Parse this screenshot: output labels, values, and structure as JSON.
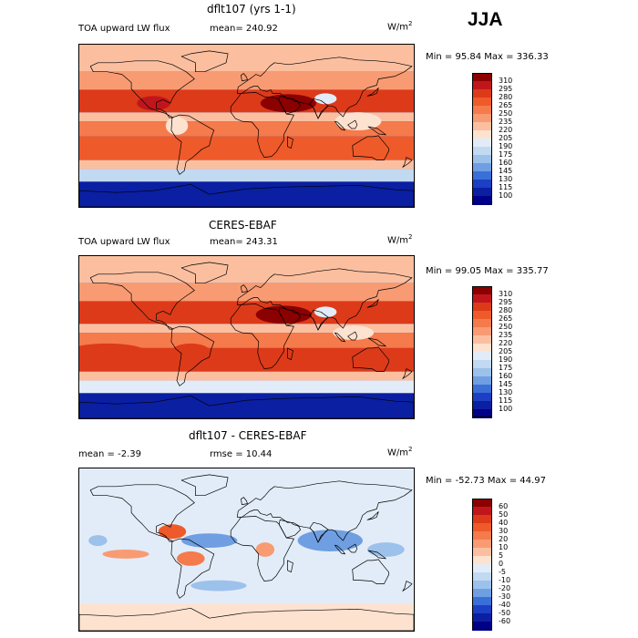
{
  "season": "JJA",
  "panels": [
    {
      "id": "model",
      "title": "dflt107 (yrs 1-1)",
      "left_label": "TOA upward LW flux",
      "center_label": "mean= 240.92",
      "units": "W/m",
      "units_sup": "2",
      "minmax": "Min =  95.84 Max = 336.33",
      "colorbar_labels": [
        "310",
        "295",
        "280",
        "265",
        "250",
        "235",
        "220",
        "205",
        "190",
        "175",
        "160",
        "145",
        "130",
        "115",
        "100"
      ],
      "colorbar_colors": [
        "#8b0000",
        "#c0161b",
        "#dd3a1a",
        "#ef5a2a",
        "#f57a4c",
        "#f89b73",
        "#fbbfa0",
        "#fde2d0",
        "#e2ecf8",
        "#c2d9f2",
        "#9cc1eb",
        "#6f9fe2",
        "#3b6fd8",
        "#1c3fc4",
        "#0b1fa2",
        "#000088"
      ],
      "regions": [
        {
          "kind": "band",
          "lat_range": [
            -90,
            -62
          ],
          "value": 110
        },
        {
          "kind": "band",
          "lat_range": [
            -62,
            -48
          ],
          "value": 185
        },
        {
          "kind": "band",
          "lat_range": [
            -48,
            -38
          ],
          "value": 220
        },
        {
          "kind": "band",
          "lat_range": [
            -38,
            -12
          ],
          "value": 275
        },
        {
          "kind": "band",
          "lat_range": [
            -12,
            5
          ],
          "value": 255
        },
        {
          "kind": "band",
          "lat_range": [
            5,
            15
          ],
          "value": 225
        },
        {
          "kind": "band",
          "lat_range": [
            15,
            40
          ],
          "value": 285
        },
        {
          "kind": "band",
          "lat_range": [
            40,
            60
          ],
          "value": 240
        },
        {
          "kind": "band",
          "lat_range": [
            60,
            90
          ],
          "value": 228
        },
        {
          "kind": "blob",
          "lon": 45,
          "lat": 25,
          "rx": 30,
          "ry": 10,
          "value": 315
        },
        {
          "kind": "blob",
          "lon": 85,
          "lat": 30,
          "rx": 12,
          "ry": 6,
          "value": 195
        },
        {
          "kind": "blob",
          "lon": 120,
          "lat": 5,
          "rx": 25,
          "ry": 10,
          "value": 205
        },
        {
          "kind": "blob",
          "lon": -75,
          "lat": 0,
          "rx": 12,
          "ry": 10,
          "value": 205
        },
        {
          "kind": "blob",
          "lon": -100,
          "lat": 25,
          "rx": 18,
          "ry": 8,
          "value": 295
        }
      ]
    },
    {
      "id": "obs",
      "title": "CERES-EBAF",
      "left_label": "TOA upward LW flux",
      "center_label": "mean= 243.31",
      "units": "W/m",
      "units_sup": "2",
      "minmax": "Min =  99.05 Max = 335.77",
      "colorbar_labels": [
        "310",
        "295",
        "280",
        "265",
        "250",
        "235",
        "220",
        "205",
        "190",
        "175",
        "160",
        "145",
        "130",
        "115",
        "100"
      ],
      "colorbar_colors": [
        "#8b0000",
        "#c0161b",
        "#dd3a1a",
        "#ef5a2a",
        "#f57a4c",
        "#f89b73",
        "#fbbfa0",
        "#fde2d0",
        "#e2ecf8",
        "#c2d9f2",
        "#9cc1eb",
        "#6f9fe2",
        "#3b6fd8",
        "#1c3fc4",
        "#0b1fa2",
        "#000088"
      ],
      "regions": [
        {
          "kind": "band",
          "lat_range": [
            -90,
            -62
          ],
          "value": 112
        },
        {
          "kind": "band",
          "lat_range": [
            -62,
            -48
          ],
          "value": 190
        },
        {
          "kind": "band",
          "lat_range": [
            -48,
            -38
          ],
          "value": 225
        },
        {
          "kind": "band",
          "lat_range": [
            -38,
            -12
          ],
          "value": 280
        },
        {
          "kind": "band",
          "lat_range": [
            -12,
            5
          ],
          "value": 260
        },
        {
          "kind": "band",
          "lat_range": [
            5,
            15
          ],
          "value": 228
        },
        {
          "kind": "band",
          "lat_range": [
            15,
            40
          ],
          "value": 283
        },
        {
          "kind": "band",
          "lat_range": [
            40,
            60
          ],
          "value": 245
        },
        {
          "kind": "band",
          "lat_range": [
            60,
            90
          ],
          "value": 230
        },
        {
          "kind": "blob",
          "lon": 40,
          "lat": 25,
          "rx": 30,
          "ry": 10,
          "value": 315
        },
        {
          "kind": "blob",
          "lon": 85,
          "lat": 28,
          "rx": 12,
          "ry": 6,
          "value": 200
        },
        {
          "kind": "blob",
          "lon": 115,
          "lat": 5,
          "rx": 22,
          "ry": 8,
          "value": 210
        },
        {
          "kind": "blob",
          "lon": -150,
          "lat": -15,
          "rx": 40,
          "ry": 8,
          "value": 290
        },
        {
          "kind": "blob",
          "lon": -60,
          "lat": -15,
          "rx": 20,
          "ry": 8,
          "value": 280
        }
      ]
    },
    {
      "id": "diff",
      "title": "dflt107 - CERES-EBAF",
      "left_label": "mean =  -2.39",
      "center_label": "rmse =  10.44",
      "units": "W/m",
      "units_sup": "2",
      "minmax": "Min = -52.73 Max =  44.97",
      "colorbar_labels": [
        "60",
        "50",
        "40",
        "30",
        "20",
        "10",
        "5",
        "0",
        "-5",
        "-10",
        "-20",
        "-30",
        "-40",
        "-50",
        "-60"
      ],
      "colorbar_colors": [
        "#8b0000",
        "#c0161b",
        "#dd3a1a",
        "#ef5a2a",
        "#f57a4c",
        "#f89b73",
        "#fbbfa0",
        "#fde2d0",
        "#e2ecf8",
        "#c2d9f2",
        "#9cc1eb",
        "#6f9fe2",
        "#3b6fd8",
        "#1c3fc4",
        "#0b1fa2",
        "#000088"
      ],
      "regions": [
        {
          "kind": "band",
          "lat_range": [
            -90,
            90
          ],
          "value": -3
        },
        {
          "kind": "band",
          "lat_range": [
            -90,
            -60
          ],
          "value": 4
        },
        {
          "kind": "blob",
          "lon": -40,
          "lat": 10,
          "rx": 30,
          "ry": 8,
          "value": -25
        },
        {
          "kind": "blob",
          "lon": 90,
          "lat": 10,
          "rx": 35,
          "ry": 12,
          "value": -25
        },
        {
          "kind": "blob",
          "lon": 150,
          "lat": 0,
          "rx": 20,
          "ry": 8,
          "value": -15
        },
        {
          "kind": "blob",
          "lon": -80,
          "lat": 20,
          "rx": 15,
          "ry": 8,
          "value": 35
        },
        {
          "kind": "blob",
          "lon": -60,
          "lat": -10,
          "rx": 15,
          "ry": 8,
          "value": 25
        },
        {
          "kind": "blob",
          "lon": 20,
          "lat": 0,
          "rx": 10,
          "ry": 8,
          "value": 18
        },
        {
          "kind": "blob",
          "lon": -130,
          "lat": -5,
          "rx": 25,
          "ry": 5,
          "value": 15
        },
        {
          "kind": "blob",
          "lon": -160,
          "lat": 10,
          "rx": 10,
          "ry": 6,
          "value": -20
        },
        {
          "kind": "blob",
          "lon": -30,
          "lat": -40,
          "rx": 30,
          "ry": 6,
          "value": -12
        }
      ]
    }
  ]
}
